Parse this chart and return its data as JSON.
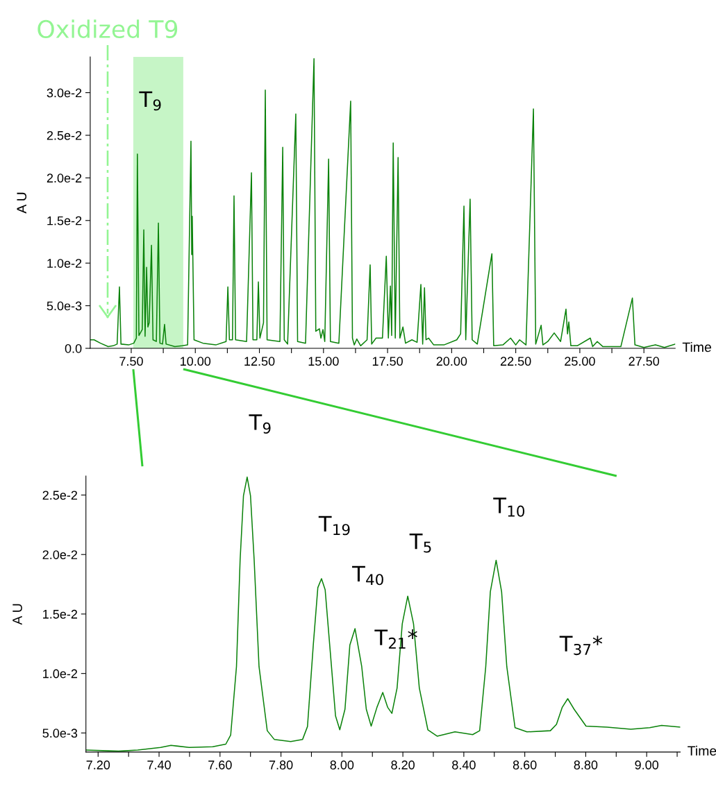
{
  "chart_data": [
    {
      "type": "line",
      "xlabel": "Time",
      "ylabel": "A U",
      "color": "#0a820a",
      "marker": "none",
      "line_style": "solid",
      "grid": false,
      "legend": false,
      "x": [
        5.9,
        6.05,
        6.3,
        6.6,
        6.8,
        6.95,
        7.04,
        7.1,
        7.4,
        7.6,
        7.7,
        7.74,
        7.8,
        7.93,
        7.99,
        8.04,
        8.1,
        8.15,
        8.2,
        8.29,
        8.35,
        8.48,
        8.56,
        8.62,
        8.72,
        8.8,
        8.86,
        9.2,
        9.5,
        9.7,
        9.83,
        9.86,
        9.88,
        9.95,
        10.3,
        10.8,
        11.2,
        11.27,
        11.33,
        11.45,
        11.51,
        11.57,
        12.0,
        12.19,
        12.25,
        12.4,
        12.46,
        12.52,
        12.66,
        12.73,
        12.8,
        13.3,
        13.41,
        13.47,
        13.6,
        13.92,
        13.99,
        14.3,
        14.63,
        14.7,
        14.84,
        14.9,
        14.98,
        15.05,
        15.2,
        15.27,
        15.6,
        16.06,
        16.13,
        16.2,
        16.3,
        16.45,
        16.7,
        16.82,
        16.88,
        17.05,
        17.3,
        17.45,
        17.53,
        17.61,
        17.66,
        17.72,
        17.8,
        17.91,
        17.98,
        18.1,
        18.2,
        18.45,
        18.65,
        18.8,
        18.87,
        18.94,
        19.0,
        19.1,
        19.3,
        19.7,
        20.2,
        20.35,
        20.48,
        20.55,
        20.72,
        20.8,
        21.0,
        21.57,
        21.64,
        22.0,
        22.3,
        22.5,
        22.65,
        22.9,
        23.19,
        23.28,
        23.49,
        23.56,
        23.75,
        24.0,
        24.25,
        24.46,
        24.52,
        24.57,
        24.65,
        24.9,
        25.41,
        25.5,
        25.68,
        25.9,
        26.6,
        27.05,
        27.15,
        27.5,
        27.95,
        28.3,
        28.72
      ],
      "values": [
        0.001,
        0.001,
        0.0006,
        0.0002,
        0.0003,
        0.0005,
        0.0072,
        0.0005,
        0.0004,
        0.0006,
        0.0012,
        0.0228,
        0.0015,
        0.0022,
        0.0139,
        0.0014,
        0.0095,
        0.0025,
        0.003,
        0.0121,
        0.001,
        0.0008,
        0.0147,
        0.0006,
        0.0005,
        0.0028,
        0.0005,
        0.0002,
        0.0003,
        0.0004,
        0.0243,
        0.011,
        0.0155,
        0.001,
        0.0006,
        0.0004,
        0.0008,
        0.0072,
        0.001,
        0.001,
        0.0179,
        0.001,
        0.0008,
        0.0206,
        0.001,
        0.001,
        0.0078,
        0.0012,
        0.003,
        0.0303,
        0.001,
        0.0008,
        0.0236,
        0.001,
        0.0005,
        0.0275,
        0.0008,
        0.0006,
        0.034,
        0.002,
        0.0023,
        0.0012,
        0.0022,
        0.0008,
        0.0222,
        0.0008,
        0.0006,
        0.029,
        0.0012,
        0.0004,
        0.0011,
        0.0003,
        0.001,
        0.0098,
        0.0005,
        0.0012,
        0.0012,
        0.0108,
        0.0012,
        0.0073,
        0.0015,
        0.0241,
        0.0012,
        0.0224,
        0.0012,
        0.0025,
        0.0006,
        0.001,
        0.0007,
        0.0075,
        0.0005,
        0.0071,
        0.001,
        0.0012,
        0.0004,
        0.0004,
        0.001,
        0.0017,
        0.0167,
        0.001,
        0.0175,
        0.001,
        0.0005,
        0.0111,
        0.0003,
        0.0004,
        0.0012,
        0.0004,
        0.001,
        0.0004,
        0.0281,
        0.0005,
        0.0027,
        0.0004,
        0.0008,
        0.0018,
        0.0008,
        0.0046,
        0.0017,
        0.0031,
        0.0003,
        0.0003,
        0.0012,
        0.0002,
        0.0008,
        0.0002,
        0.0002,
        0.0059,
        0.0004,
        0.0001,
        0.0004,
        0.0001,
        0.0005
      ],
      "xlim": [
        5.9,
        28.72
      ],
      "ylim": [
        0,
        0.0342
      ],
      "xticks": [
        {
          "value": 7.5,
          "label": "7.50"
        },
        {
          "value": 8.75,
          "label": null
        },
        {
          "value": 10,
          "label": "10.00"
        },
        {
          "value": 11.25,
          "label": null
        },
        {
          "value": 12.5,
          "label": "12.50"
        },
        {
          "value": 13.75,
          "label": null
        },
        {
          "value": 15,
          "label": "15.00"
        },
        {
          "value": 16.25,
          "label": null
        },
        {
          "value": 17.5,
          "label": "17.50"
        },
        {
          "value": 18.75,
          "label": null
        },
        {
          "value": 20,
          "label": "20.00"
        },
        {
          "value": 21.25,
          "label": null
        },
        {
          "value": 22.5,
          "label": "22.50"
        },
        {
          "value": 23.75,
          "label": null
        },
        {
          "value": 25,
          "label": "25.00"
        },
        {
          "value": 26.25,
          "label": null
        },
        {
          "value": 27.5,
          "label": "27.50"
        }
      ],
      "yticks": [
        {
          "value": 0,
          "label": "0.0"
        },
        {
          "value": 0.005,
          "label": "5.0e-3"
        },
        {
          "value": 0.01,
          "label": "1.0e-2"
        },
        {
          "value": 0.015,
          "label": "1.5e-2"
        },
        {
          "value": 0.02,
          "label": "2.0e-2"
        },
        {
          "value": 0.025,
          "label": "2.5e-2"
        },
        {
          "value": 0.03,
          "label": "3.0e-2"
        }
      ],
      "bands": [
        {
          "axis": "x",
          "from": 7.58,
          "to": 9.53,
          "color": "#c6f5c6"
        }
      ],
      "annotations": [
        {
          "text": "T$_{9}$",
          "x": 7.74,
          "y": 0.0228
        },
        "Oxidized T9"
      ]
    },
    {
      "type": "line",
      "xlabel": "Time",
      "ylabel": "A U",
      "color": "#0a820a",
      "marker": "none",
      "line_style": "solid",
      "grid": false,
      "legend": false,
      "x": [
        7.161,
        7.267,
        7.33,
        7.405,
        7.439,
        7.499,
        7.576,
        7.619,
        7.635,
        7.654,
        7.666,
        7.677,
        7.689,
        7.7,
        7.712,
        7.728,
        7.755,
        7.778,
        7.832,
        7.871,
        7.887,
        7.906,
        7.921,
        7.933,
        7.945,
        7.96,
        7.979,
        7.993,
        8.01,
        8.026,
        8.043,
        8.065,
        8.08,
        8.096,
        8.115,
        8.134,
        8.15,
        8.164,
        8.181,
        8.198,
        8.216,
        8.235,
        8.254,
        8.282,
        8.313,
        8.371,
        8.429,
        8.452,
        8.472,
        8.487,
        8.506,
        8.524,
        8.541,
        8.568,
        8.607,
        8.684,
        8.704,
        8.723,
        8.741,
        8.762,
        8.801,
        8.87,
        8.948,
        9.01,
        9.049,
        9.11
      ],
      "values": [
        0.00356,
        0.00347,
        0.00356,
        0.00378,
        0.00396,
        0.00378,
        0.00384,
        0.00406,
        0.00482,
        0.01058,
        0.01956,
        0.02495,
        0.02651,
        0.02495,
        0.01956,
        0.01058,
        0.00519,
        0.00446,
        0.00428,
        0.00446,
        0.00554,
        0.01238,
        0.01722,
        0.01797,
        0.01704,
        0.01238,
        0.00644,
        0.00527,
        0.00699,
        0.01238,
        0.01377,
        0.01058,
        0.00699,
        0.00558,
        0.00716,
        0.00841,
        0.00716,
        0.00665,
        0.00878,
        0.01417,
        0.0165,
        0.01417,
        0.00878,
        0.00527,
        0.00473,
        0.00509,
        0.00486,
        0.00519,
        0.01058,
        0.01687,
        0.01952,
        0.01687,
        0.01058,
        0.00545,
        0.00509,
        0.00519,
        0.00572,
        0.00716,
        0.00788,
        0.00699,
        0.00558,
        0.00549,
        0.00532,
        0.00545,
        0.00563,
        0.00549
      ],
      "xlim": [
        7.16,
        9.11
      ],
      "ylim": [
        0.0034,
        0.0266
      ],
      "xticks": [
        {
          "value": 7.2,
          "label": "7.20"
        },
        {
          "value": 7.3,
          "label": null
        },
        {
          "value": 7.4,
          "label": "7.40"
        },
        {
          "value": 7.5,
          "label": null
        },
        {
          "value": 7.6,
          "label": "7.60"
        },
        {
          "value": 7.7,
          "label": null
        },
        {
          "value": 7.8,
          "label": "7.80"
        },
        {
          "value": 7.9,
          "label": null
        },
        {
          "value": 8.0,
          "label": "8.00"
        },
        {
          "value": 8.1,
          "label": null
        },
        {
          "value": 8.2,
          "label": "8.20"
        },
        {
          "value": 8.3,
          "label": null
        },
        {
          "value": 8.4,
          "label": "8.40"
        },
        {
          "value": 8.5,
          "label": null
        },
        {
          "value": 8.6,
          "label": "8.60"
        },
        {
          "value": 8.7,
          "label": null
        },
        {
          "value": 8.8,
          "label": "8.80"
        },
        {
          "value": 8.9,
          "label": null
        },
        {
          "value": 9.0,
          "label": "9.00"
        },
        {
          "value": 9.1,
          "label": null
        }
      ],
      "yticks": [
        {
          "value": 0.005,
          "label": "5.0e-3"
        },
        {
          "value": 0.01,
          "label": "1.0e-2"
        },
        {
          "value": 0.015,
          "label": "1.5e-2"
        },
        {
          "value": 0.02,
          "label": "2.0e-2"
        },
        {
          "value": 0.025,
          "label": "2.5e-2"
        }
      ],
      "annotations": [
        {
          "text": "T$_{9}$",
          "x": 7.689,
          "y": 0.02651
        },
        {
          "text": "T$_{19}$",
          "x": 7.933,
          "y": 0.01797
        },
        {
          "text": "T$_{40}$",
          "x": 8.043,
          "y": 0.01377
        },
        {
          "text": "T$_{21}$*",
          "x": 8.134,
          "y": 0.00841
        },
        {
          "text": "T$_{5}$",
          "x": 8.216,
          "y": 0.0165
        },
        {
          "text": "T$_{10}$",
          "x": 8.506,
          "y": 0.01952
        },
        {
          "text": "T$_{37}$*",
          "x": 8.741,
          "y": 0.00788
        }
      ]
    }
  ]
}
